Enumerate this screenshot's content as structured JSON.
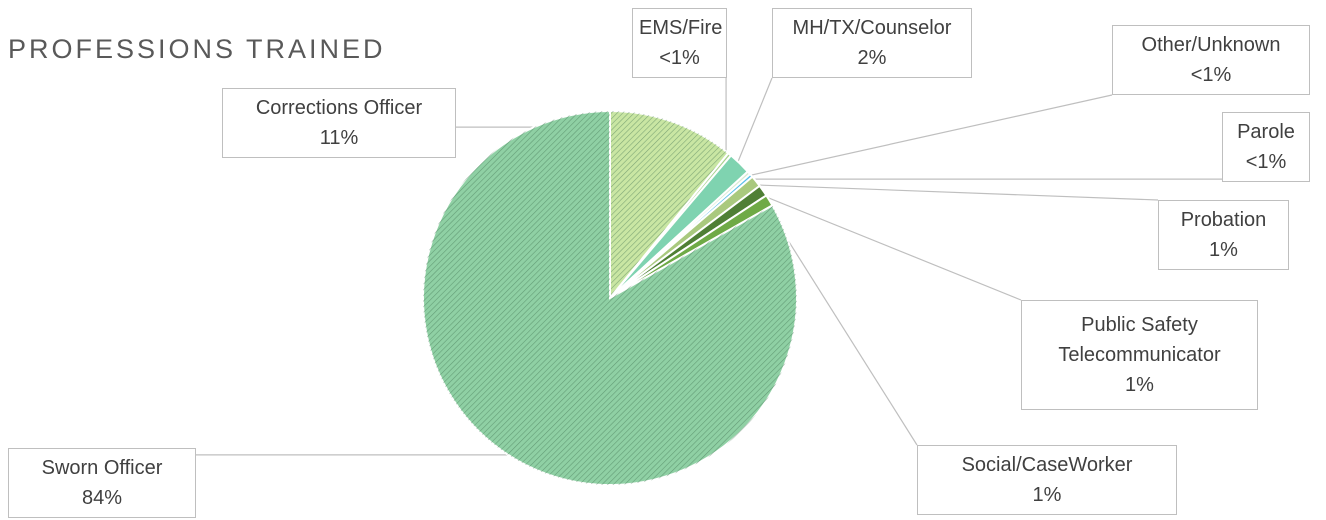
{
  "chart_data": {
    "type": "pie",
    "title": "PROFESSIONS TRAINED",
    "categories": [
      "Corrections Officer",
      "EMS/Fire",
      "MH/TX/Counselor",
      "Other/Unknown",
      "Parole",
      "Probation",
      "Public Safety Telecommunicator",
      "Social/CaseWorker",
      "Sworn Officer"
    ],
    "values": [
      11,
      0.3,
      2,
      0.3,
      0.3,
      1,
      1,
      1,
      84
    ],
    "value_labels": [
      "11%",
      "<1%",
      "2%",
      "<1%",
      "<1%",
      "1%",
      "1%",
      "1%",
      "84%"
    ],
    "colors": [
      "#c9e6a3",
      "#a9d18e",
      "#7fd3b0",
      "#d9ead3",
      "#5bbfea",
      "#a9c97e",
      "#4f7f35",
      "#6faa46",
      "#8fd0a4"
    ]
  }
}
